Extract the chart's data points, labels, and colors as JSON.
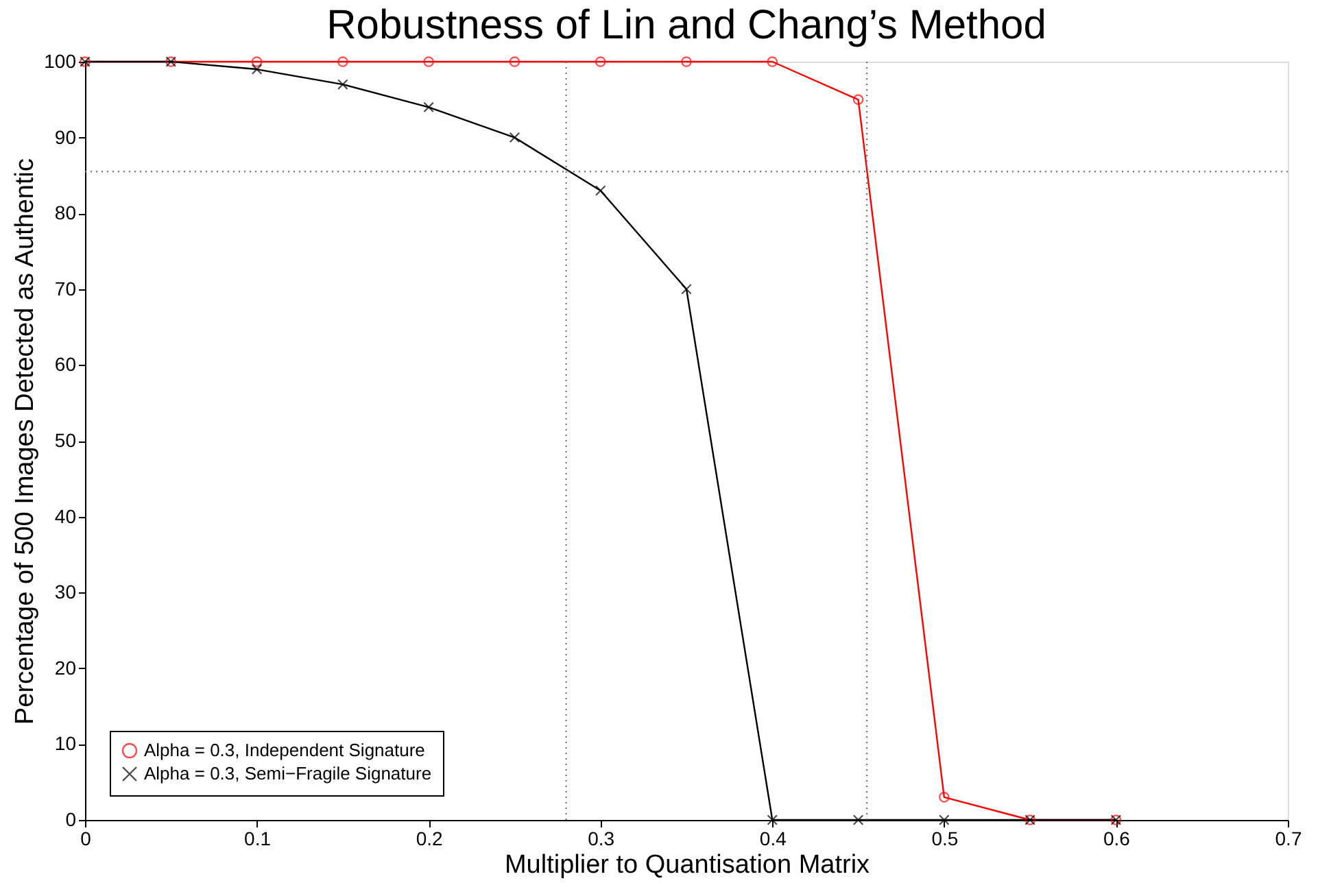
{
  "chart_data": {
    "type": "line",
    "title": "Robustness of Lin and Chang’s Method",
    "xlabel": "Multiplier to Quantisation Matrix",
    "ylabel": "Percentage of 500 Images Detected as Authentic",
    "x": [
      0,
      0.05,
      0.1,
      0.15,
      0.2,
      0.25,
      0.3,
      0.35,
      0.4,
      0.45,
      0.5,
      0.55,
      0.6
    ],
    "series": [
      {
        "name": "Alpha = 0.3, Independent Signature",
        "color": "#ff0000",
        "marker": "circle",
        "values": [
          100,
          100,
          100,
          100,
          100,
          100,
          100,
          100,
          100,
          95,
          3,
          0,
          0
        ]
      },
      {
        "name": "Alpha = 0.3, Semi−Fragile Signature",
        "color": "#000000",
        "marker": "cross",
        "values": [
          100,
          100,
          99,
          97,
          94,
          90,
          83,
          70,
          0,
          0,
          0,
          0,
          0
        ]
      }
    ],
    "xlim": [
      0,
      0.7
    ],
    "xticks": [
      0,
      0.1,
      0.2,
      0.3,
      0.4,
      0.5,
      0.6,
      0.7
    ],
    "ylim": [
      0,
      100
    ],
    "yticks": [
      0,
      10,
      20,
      30,
      40,
      50,
      60,
      70,
      80,
      90,
      100
    ],
    "ref_lines": [
      {
        "axis": "y",
        "value": 85.5,
        "color": "#666666",
        "line_style": "dotted"
      },
      {
        "axis": "x",
        "value": 0.28,
        "color": "#666666",
        "line_style": "dotted"
      },
      {
        "axis": "x",
        "value": 0.455,
        "color": "#666666",
        "line_style": "dotted"
      }
    ],
    "grid": false,
    "legend": "bottom left",
    "line_style": "solid"
  }
}
